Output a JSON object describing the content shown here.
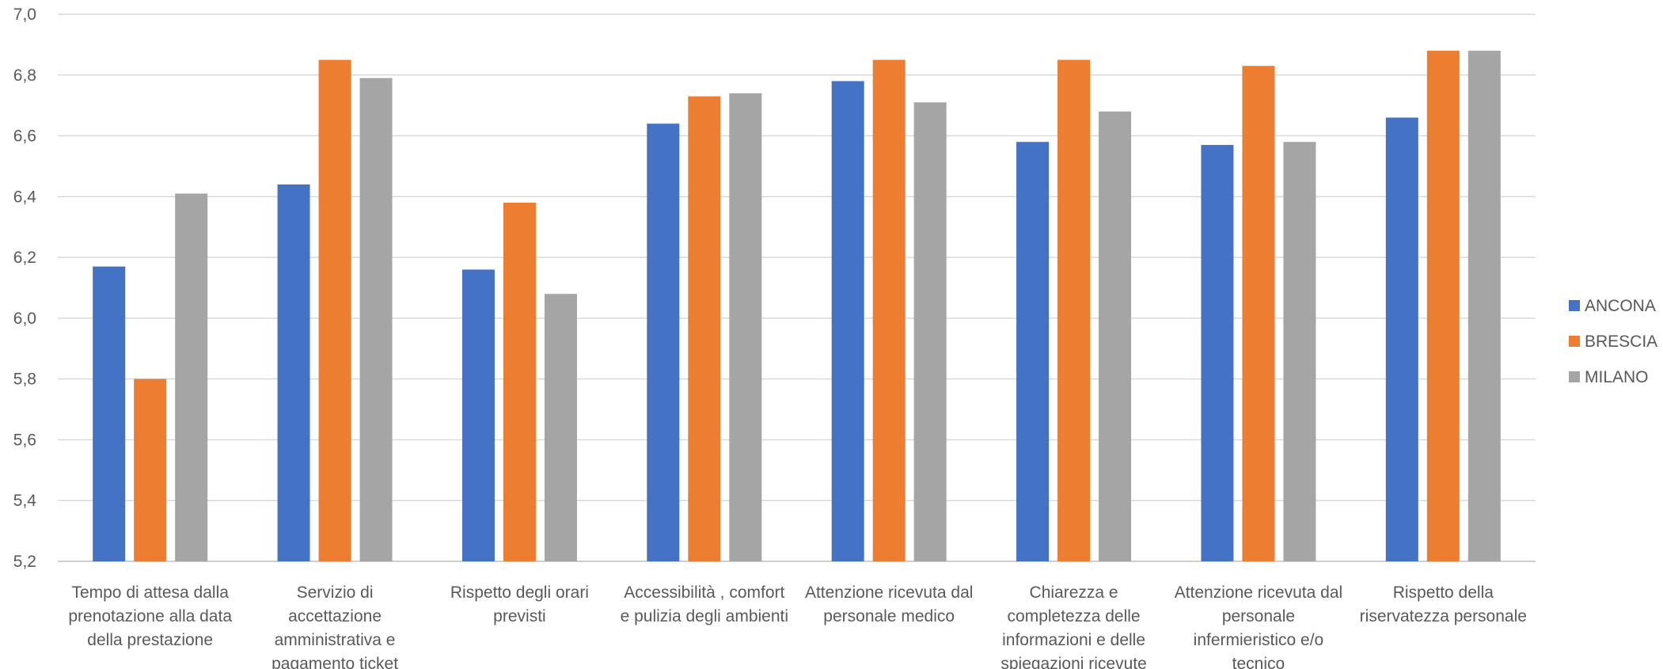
{
  "chart_data": {
    "type": "bar",
    "categories": [
      [
        "Tempo di attesa dalla",
        "prenotazione alla data",
        "della prestazione"
      ],
      [
        "Servizio di",
        "accettazione",
        "amministrativa e",
        "pagamento ticket"
      ],
      [
        "Rispetto degli orari",
        "previsti"
      ],
      [
        "Accessibilità , comfort",
        "e pulizia degli ambienti"
      ],
      [
        "Attenzione ricevuta dal",
        "personale medico"
      ],
      [
        "Chiarezza e",
        "completezza delle",
        "informazioni e delle",
        "spiegazioni ricevute"
      ],
      [
        "Attenzione ricevuta dal",
        "personale",
        "infermieristico e/o",
        "tecnico"
      ],
      [
        "Rispetto della",
        "riservatezza personale"
      ]
    ],
    "series": [
      {
        "name": "ANCONA",
        "color": "#4472c4",
        "values": [
          6.17,
          6.44,
          6.16,
          6.64,
          6.78,
          6.58,
          6.57,
          6.66
        ]
      },
      {
        "name": "BRESCIA",
        "color": "#ed7d31",
        "values": [
          5.8,
          6.85,
          6.38,
          6.73,
          6.85,
          6.85,
          6.83,
          6.88
        ]
      },
      {
        "name": "MILANO",
        "color": "#a5a5a5",
        "values": [
          6.41,
          6.79,
          6.08,
          6.74,
          6.71,
          6.68,
          6.58,
          6.88
        ]
      }
    ],
    "ylim": [
      5.2,
      7.0
    ],
    "yticks": [
      "5,2",
      "5,4",
      "5,6",
      "5,8",
      "6,0",
      "6,2",
      "6,4",
      "6,6",
      "6,8",
      "7,0"
    ],
    "grid": true,
    "legend_position": "right",
    "title": "",
    "xlabel": "",
    "ylabel": ""
  }
}
